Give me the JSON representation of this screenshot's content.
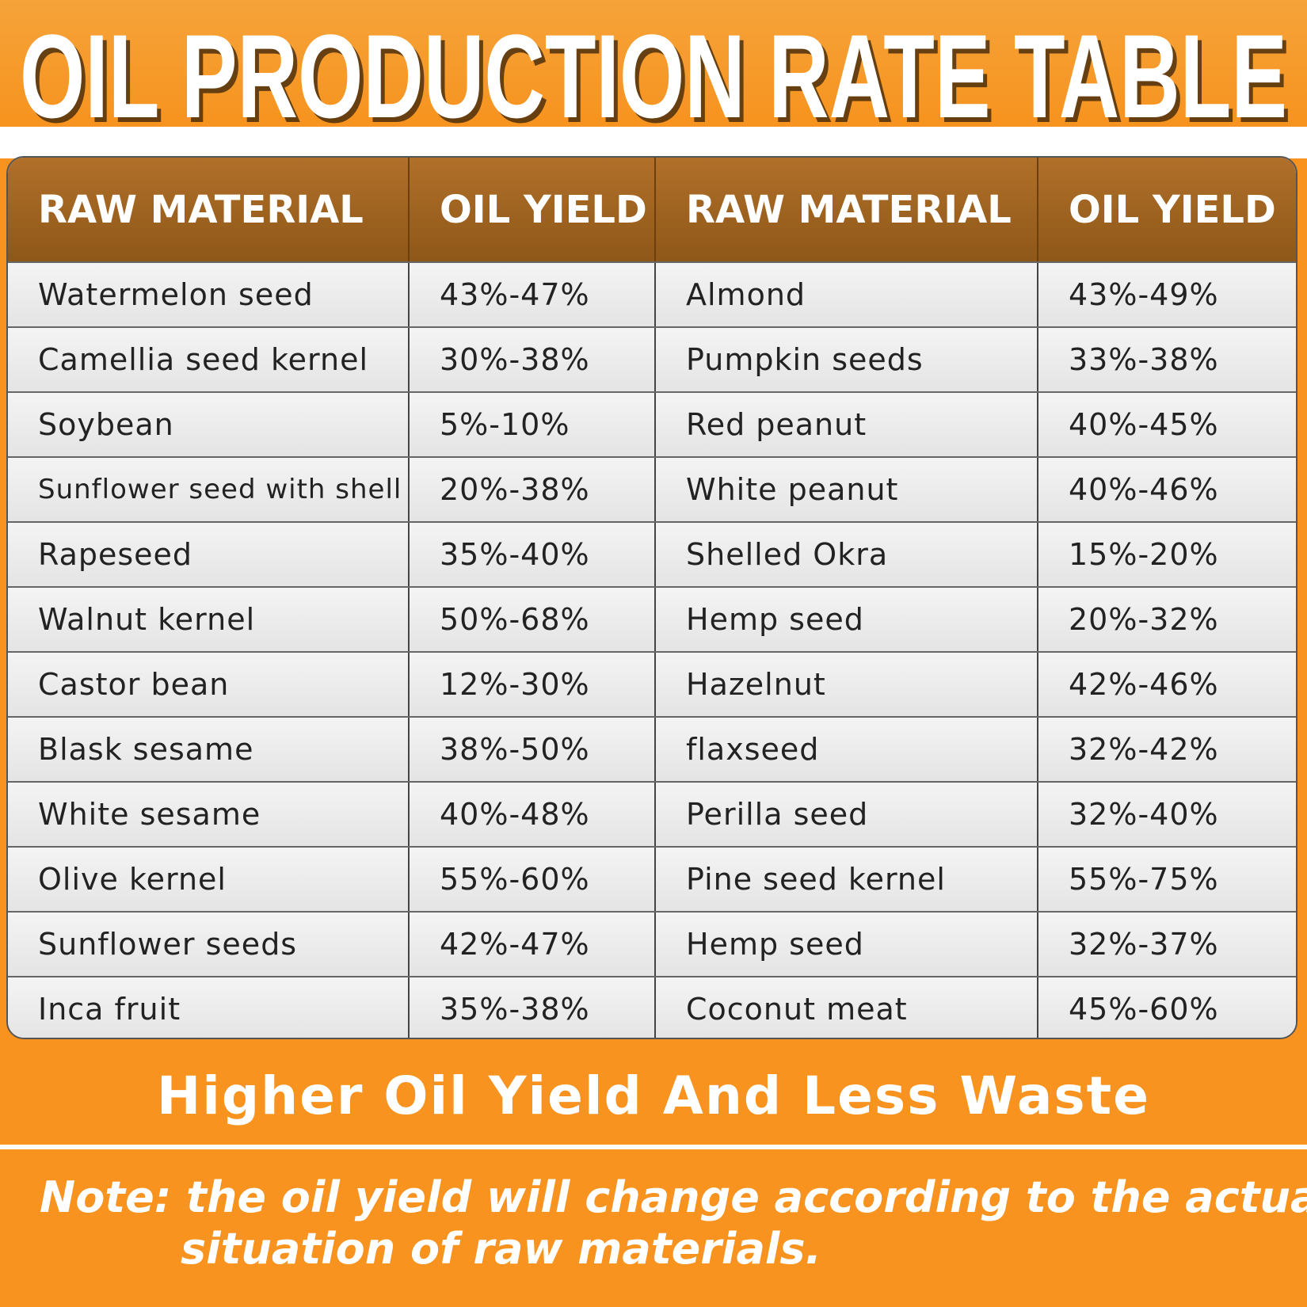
{
  "title": "OIL PRODUCTION RATE TABLE",
  "table": {
    "header": [
      "RAW MATERIAL",
      "OIL YIELD",
      "RAW MATERIAL",
      "OIL YIELD"
    ],
    "rows": [
      [
        "Watermelon seed",
        "43%-47%",
        "Almond",
        "43%-49%"
      ],
      [
        "Camellia seed kernel",
        "30%-38%",
        "Pumpkin seeds",
        "33%-38%"
      ],
      [
        "Soybean",
        "5%-10%",
        "Red peanut",
        "40%-45%"
      ],
      [
        "Sunflower seed with shell",
        "20%-38%",
        "White peanut",
        "40%-46%"
      ],
      [
        "Rapeseed",
        "35%-40%",
        "Shelled Okra",
        "15%-20%"
      ],
      [
        "Walnut kernel",
        "50%-68%",
        "Hemp seed",
        "20%-32%"
      ],
      [
        "Castor bean",
        "12%-30%",
        "Hazelnut",
        "42%-46%"
      ],
      [
        "Blask sesame",
        "38%-50%",
        "flaxseed",
        "32%-42%"
      ],
      [
        "White sesame",
        "40%-48%",
        "Perilla seed",
        "32%-40%"
      ],
      [
        "Olive kernel",
        "55%-60%",
        "Pine seed kernel",
        "55%-75%"
      ],
      [
        "Sunflower seeds",
        "42%-47%",
        "Hemp seed",
        "32%-37%"
      ],
      [
        "Inca fruit",
        "35%-38%",
        "Coconut meat",
        "45%-60%"
      ]
    ]
  },
  "slogan": "Higher Oil Yield And Less Waste",
  "note": [
    "Note: the oil yield will change according to the actual",
    "situation of raw materials."
  ]
}
